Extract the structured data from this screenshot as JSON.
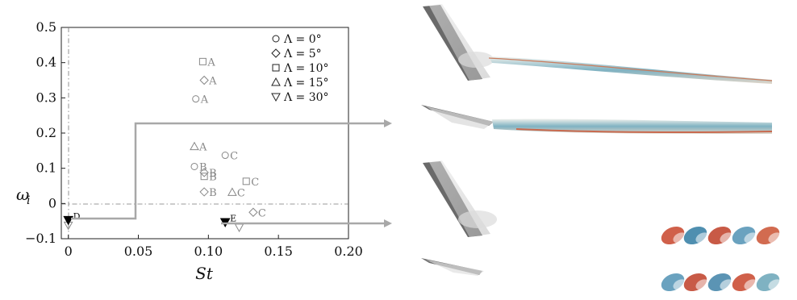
{
  "chart_data": {
    "type": "scatter",
    "xlabel_main": "St",
    "ylabel_main": "ω",
    "ylabel_sub": "i",
    "xlim": [
      -0.005,
      0.2
    ],
    "ylim": [
      -0.1,
      0.5
    ],
    "xticks": [
      "0",
      "0.05",
      "0.10",
      "0.15",
      "0.20"
    ],
    "xtick_values": [
      0,
      0.05,
      0.1,
      0.15,
      0.2
    ],
    "yticks": [
      "−0.1",
      "0",
      "0.1",
      "0.2",
      "0.3",
      "0.4",
      "0.5"
    ],
    "ytick_values": [
      -0.1,
      0,
      0.1,
      0.2,
      0.3,
      0.4,
      0.5
    ],
    "legend_placement": "top-right",
    "series": [
      {
        "name": "Λ = 0°",
        "marker": "circle",
        "points": [
          {
            "x": 0.091,
            "y": 0.297,
            "label": "A"
          },
          {
            "x": 0.09,
            "y": 0.105,
            "label": "B"
          },
          {
            "x": 0.112,
            "y": 0.137,
            "label": "C"
          }
        ]
      },
      {
        "name": "Λ = 5°",
        "marker": "diamond",
        "points": [
          {
            "x": 0.097,
            "y": 0.35,
            "label": "A"
          },
          {
            "x": 0.097,
            "y": 0.088,
            "label": "B"
          },
          {
            "x": 0.097,
            "y": 0.033,
            "label": "B"
          },
          {
            "x": 0.132,
            "y": -0.025,
            "label": "C"
          }
        ]
      },
      {
        "name": "Λ = 10°",
        "marker": "square",
        "points": [
          {
            "x": 0.096,
            "y": 0.403,
            "label": "A"
          },
          {
            "x": 0.097,
            "y": 0.077,
            "label": "B"
          },
          {
            "x": 0.127,
            "y": 0.063,
            "label": "C"
          }
        ]
      },
      {
        "name": "Λ = 15°",
        "marker": "triangle-up",
        "points": [
          {
            "x": 0.09,
            "y": 0.162,
            "label": "A"
          },
          {
            "x": 0.117,
            "y": 0.032,
            "label": "C"
          }
        ]
      },
      {
        "name": "Λ = 30°",
        "marker": "triangle-down",
        "points": [
          {
            "x": 0,
            "y": -0.062,
            "label": ""
          },
          {
            "x": 0.122,
            "y": -0.068,
            "label": ""
          }
        ]
      }
    ],
    "highlighted": [
      {
        "x": 0,
        "y": -0.047,
        "label": "D"
      },
      {
        "x": 0.112,
        "y": -0.053,
        "label": "E"
      }
    ]
  }
}
